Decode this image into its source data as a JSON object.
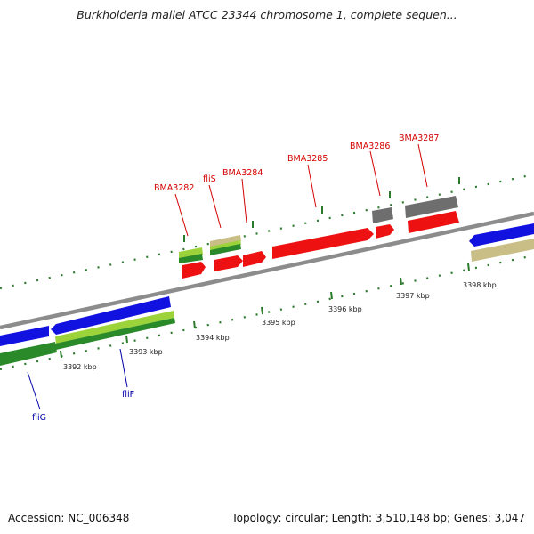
{
  "title": "Burkholderia mallei ATCC 23344 chromosome 1, complete sequen...",
  "footer": {
    "accession": "Accession: NC_006348",
    "summary": "Topology: circular; Length: 3,510,148 bp; Genes: 3,047"
  },
  "colors": {
    "red": "#ee1111",
    "blue": "#1111e0",
    "green": "#2a8a2a",
    "lime": "#9cd23a",
    "tan": "#c9bf86",
    "gray": "#6e6e6e",
    "backbone": "#8c8c8c",
    "tick": "#2c7a2c",
    "label_red": "#d40000",
    "label_blue": "#0000a8"
  },
  "kbp_labels": [
    "3392 kbp",
    "3393 kbp",
    "3394 kbp",
    "3395 kbp",
    "3396 kbp",
    "3397 kbp",
    "3398 kbp"
  ],
  "gene_labels_red": [
    "BMA3282",
    "fliS",
    "BMA3284",
    "BMA3285",
    "BMA3286",
    "BMA3287"
  ],
  "gene_labels_blue": [
    "fliG",
    "fliF"
  ]
}
